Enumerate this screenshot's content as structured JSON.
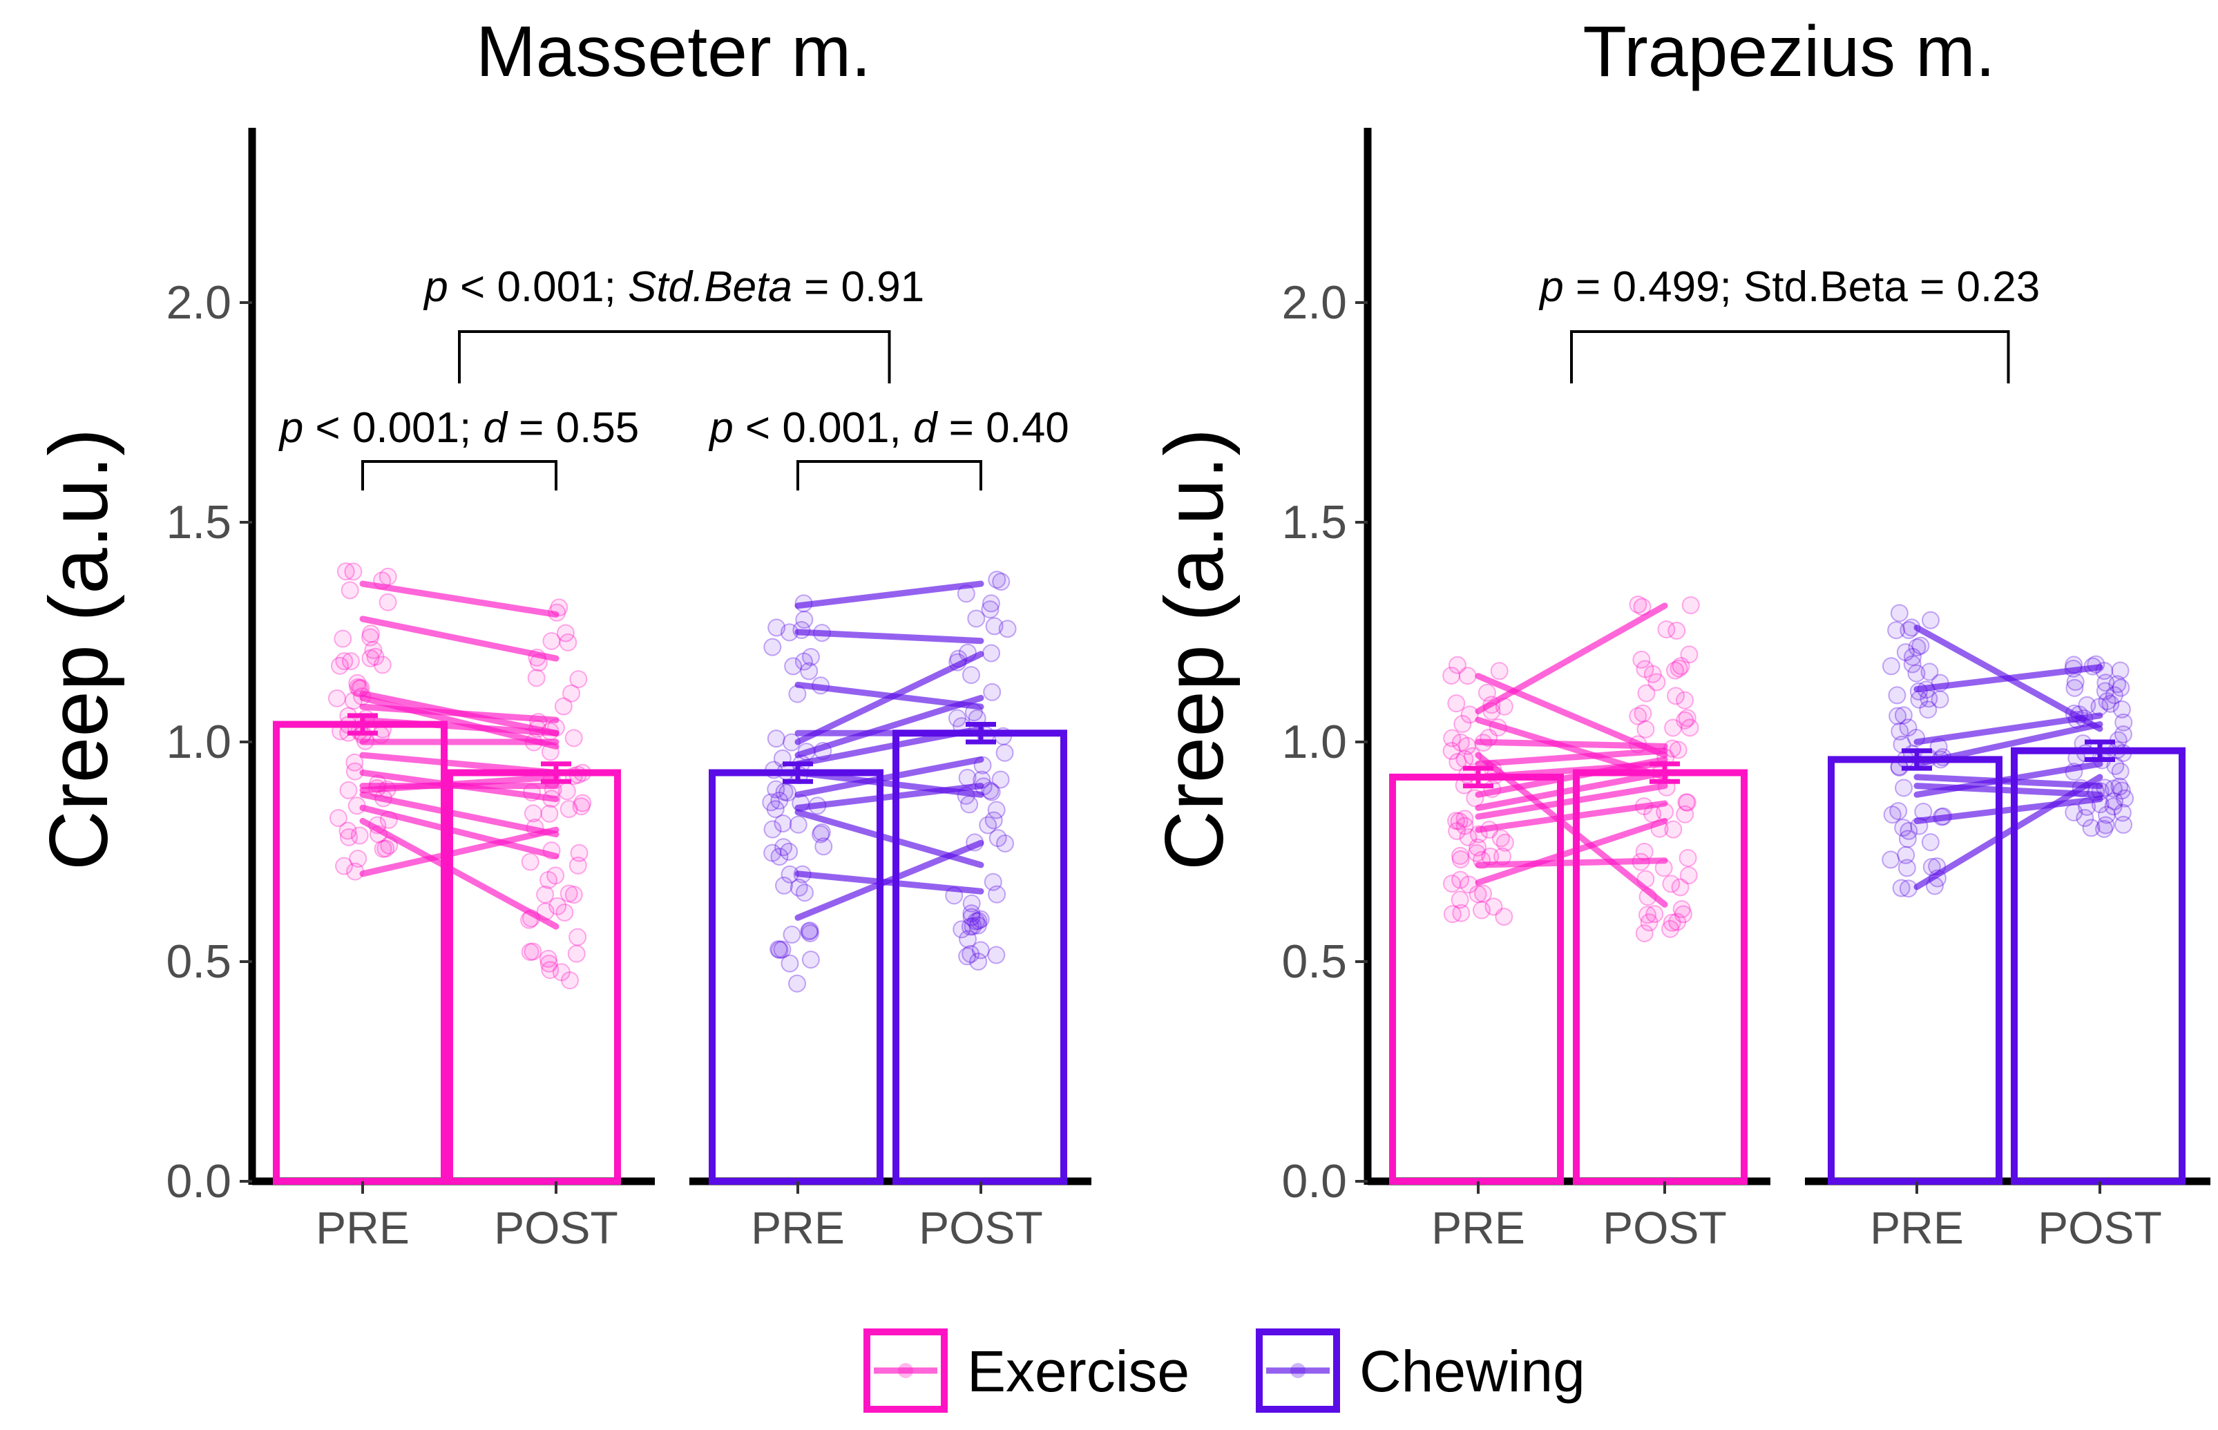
{
  "chart_data": {
    "type": "bar",
    "y_axis_label": "Creep (a.u.)",
    "ylim": [
      0,
      2.4
    ],
    "y_ticks": [
      "0.0",
      "0.5",
      "1.0",
      "1.5",
      "2.0"
    ],
    "x_tick_labels": [
      "PRE",
      "POST"
    ],
    "legend": {
      "position": "bottom",
      "items": [
        {
          "name": "Exercise",
          "color": "#FF14C4"
        },
        {
          "name": "Chewing",
          "color": "#5A0CE6"
        }
      ]
    },
    "panels": [
      {
        "title": "Masseter m.",
        "groups": [
          {
            "name": "Exercise",
            "color": "#FF14C4",
            "bars": [
              {
                "label": "PRE",
                "mean": 1.04,
                "se": 0.02
              },
              {
                "label": "POST",
                "mean": 0.93,
                "se": 0.02
              }
            ],
            "pairs": [
              [
                1.36,
                1.29
              ],
              [
                1.28,
                1.19
              ],
              [
                1.11,
                1.02
              ],
              [
                1.1,
                0.99
              ],
              [
                1.08,
                1.05
              ],
              [
                1.05,
                1.02
              ],
              [
                1.0,
                1.0
              ],
              [
                0.97,
                0.93
              ],
              [
                0.93,
                0.87
              ],
              [
                0.9,
                0.9
              ],
              [
                0.89,
                0.92
              ],
              [
                0.88,
                0.79
              ],
              [
                0.85,
                0.74
              ],
              [
                0.82,
                0.58
              ],
              [
                0.7,
                0.8
              ]
            ],
            "scatter": {
              "pre": [
                0.7,
                1.42
              ],
              "post": [
                0.45,
                1.33
              ]
            }
          },
          {
            "name": "Chewing",
            "color": "#5A0CE6",
            "bars": [
              {
                "label": "PRE",
                "mean": 0.93,
                "se": 0.02
              },
              {
                "label": "POST",
                "mean": 1.02,
                "se": 0.02
              }
            ],
            "pairs": [
              [
                1.31,
                1.36
              ],
              [
                1.25,
                1.23
              ],
              [
                1.13,
                1.08
              ],
              [
                1.02,
                1.02
              ],
              [
                1.0,
                1.2
              ],
              [
                0.97,
                1.1
              ],
              [
                0.95,
                1.03
              ],
              [
                0.93,
                0.88
              ],
              [
                0.88,
                0.96
              ],
              [
                0.85,
                0.9
              ],
              [
                0.84,
                0.72
              ],
              [
                0.7,
                0.66
              ],
              [
                0.6,
                0.77
              ]
            ],
            "scatter": {
              "pre": [
                0.45,
                1.35
              ],
              "post": [
                0.5,
                1.4
              ]
            }
          }
        ],
        "within_annotations": [
          {
            "group": "Exercise",
            "text": [
              "p",
              " < 0.001; ",
              "d",
              " = 0.55"
            ]
          },
          {
            "group": "Chewing",
            "text": [
              "p",
              " < 0.001, ",
              "d",
              " = 0.40"
            ]
          }
        ],
        "between_annotation": {
          "text": [
            "p",
            " < 0.001; ",
            "Std.Beta",
            " = 0.91"
          ]
        }
      },
      {
        "title": "Trapezius m.",
        "groups": [
          {
            "name": "Exercise",
            "color": "#FF14C4",
            "bars": [
              {
                "label": "PRE",
                "mean": 0.92,
                "se": 0.02
              },
              {
                "label": "POST",
                "mean": 0.93,
                "se": 0.02
              }
            ],
            "pairs": [
              [
                1.15,
                0.97
              ],
              [
                1.07,
                1.31
              ],
              [
                1.05,
                0.92
              ],
              [
                1.0,
                0.99
              ],
              [
                0.97,
                0.63
              ],
              [
                0.95,
                0.98
              ],
              [
                0.92,
                0.95
              ],
              [
                0.88,
                0.96
              ],
              [
                0.85,
                0.93
              ],
              [
                0.83,
                0.9
              ],
              [
                0.8,
                0.86
              ],
              [
                0.72,
                0.73
              ],
              [
                0.68,
                0.82
              ]
            ],
            "scatter": {
              "pre": [
                0.6,
                1.18
              ],
              "post": [
                0.51,
                1.33
              ]
            }
          },
          {
            "name": "Chewing",
            "color": "#5A0CE6",
            "bars": [
              {
                "label": "PRE",
                "mean": 0.96,
                "se": 0.02
              },
              {
                "label": "POST",
                "mean": 0.98,
                "se": 0.02
              }
            ],
            "pairs": [
              [
                1.26,
                1.03
              ],
              [
                1.12,
                1.17
              ],
              [
                1.0,
                1.06
              ],
              [
                0.95,
                1.04
              ],
              [
                0.92,
                0.9
              ],
              [
                0.9,
                0.88
              ],
              [
                0.88,
                0.95
              ],
              [
                0.82,
                0.87
              ],
              [
                0.67,
                0.92
              ]
            ],
            "scatter": {
              "pre": [
                0.65,
                1.31
              ],
              "post": [
                0.8,
                1.18
              ]
            }
          }
        ],
        "within_annotations": [],
        "between_annotation": {
          "text": [
            "p",
            " = 0.499; Std.Beta = 0.23"
          ]
        }
      }
    ]
  }
}
